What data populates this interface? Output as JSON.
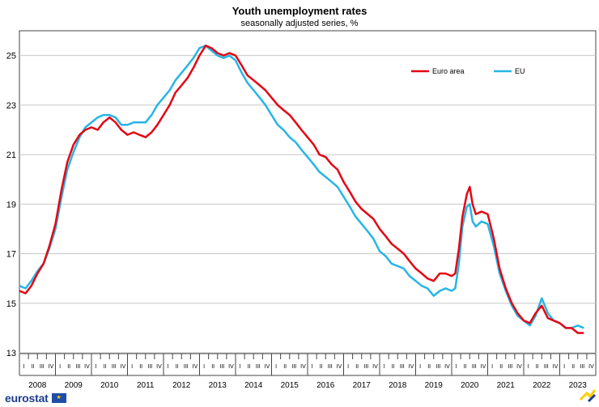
{
  "chart_data": {
    "type": "line",
    "title": "Youth unemployment rates",
    "subtitle": "seasonally adjusted series, %",
    "xlabel": "",
    "ylabel": "",
    "ylim": [
      13,
      26
    ],
    "y_ticks": [
      13,
      15,
      17,
      19,
      21,
      23,
      25
    ],
    "grid": true,
    "legend_position": "top-right",
    "quarter_labels": [
      "I",
      "II",
      "III",
      "IV"
    ],
    "years": [
      "2008",
      "2009",
      "2010",
      "2011",
      "2012",
      "2013",
      "2014",
      "2015",
      "2016",
      "2017",
      "2018",
      "2019",
      "2020",
      "2021",
      "2022",
      "2023"
    ],
    "x_start": 2008.0,
    "x_end": 2023.75,
    "series": [
      {
        "name": "Euro area",
        "color": "#e30613",
        "points": [
          [
            2008.0,
            15.5
          ],
          [
            2008.17,
            15.4
          ],
          [
            2008.33,
            15.7
          ],
          [
            2008.5,
            16.2
          ],
          [
            2008.67,
            16.6
          ],
          [
            2008.83,
            17.3
          ],
          [
            2009.0,
            18.2
          ],
          [
            2009.17,
            19.6
          ],
          [
            2009.33,
            20.7
          ],
          [
            2009.5,
            21.4
          ],
          [
            2009.67,
            21.8
          ],
          [
            2009.83,
            22.0
          ],
          [
            2010.0,
            22.1
          ],
          [
            2010.17,
            22.0
          ],
          [
            2010.33,
            22.3
          ],
          [
            2010.5,
            22.5
          ],
          [
            2010.67,
            22.3
          ],
          [
            2010.83,
            22.0
          ],
          [
            2011.0,
            21.8
          ],
          [
            2011.17,
            21.9
          ],
          [
            2011.33,
            21.8
          ],
          [
            2011.5,
            21.7
          ],
          [
            2011.67,
            21.9
          ],
          [
            2011.83,
            22.2
          ],
          [
            2012.0,
            22.6
          ],
          [
            2012.17,
            23.0
          ],
          [
            2012.33,
            23.5
          ],
          [
            2012.5,
            23.8
          ],
          [
            2012.67,
            24.1
          ],
          [
            2012.83,
            24.5
          ],
          [
            2013.0,
            25.0
          ],
          [
            2013.17,
            25.4
          ],
          [
            2013.33,
            25.3
          ],
          [
            2013.5,
            25.1
          ],
          [
            2013.67,
            25.0
          ],
          [
            2013.83,
            25.1
          ],
          [
            2014.0,
            25.0
          ],
          [
            2014.17,
            24.6
          ],
          [
            2014.33,
            24.2
          ],
          [
            2014.5,
            24.0
          ],
          [
            2014.67,
            23.8
          ],
          [
            2014.83,
            23.6
          ],
          [
            2015.0,
            23.3
          ],
          [
            2015.17,
            23.0
          ],
          [
            2015.33,
            22.8
          ],
          [
            2015.5,
            22.6
          ],
          [
            2015.67,
            22.3
          ],
          [
            2015.83,
            22.0
          ],
          [
            2016.0,
            21.7
          ],
          [
            2016.17,
            21.4
          ],
          [
            2016.33,
            21.0
          ],
          [
            2016.5,
            20.9
          ],
          [
            2016.67,
            20.6
          ],
          [
            2016.83,
            20.4
          ],
          [
            2017.0,
            19.9
          ],
          [
            2017.17,
            19.5
          ],
          [
            2017.33,
            19.1
          ],
          [
            2017.5,
            18.8
          ],
          [
            2017.67,
            18.6
          ],
          [
            2017.83,
            18.4
          ],
          [
            2018.0,
            18.0
          ],
          [
            2018.17,
            17.7
          ],
          [
            2018.33,
            17.4
          ],
          [
            2018.5,
            17.2
          ],
          [
            2018.67,
            17.0
          ],
          [
            2018.83,
            16.7
          ],
          [
            2019.0,
            16.4
          ],
          [
            2019.17,
            16.2
          ],
          [
            2019.33,
            16.0
          ],
          [
            2019.5,
            15.9
          ],
          [
            2019.67,
            16.2
          ],
          [
            2019.83,
            16.2
          ],
          [
            2020.0,
            16.1
          ],
          [
            2020.1,
            16.2
          ],
          [
            2020.2,
            17.2
          ],
          [
            2020.3,
            18.5
          ],
          [
            2020.42,
            19.4
          ],
          [
            2020.5,
            19.7
          ],
          [
            2020.58,
            19.0
          ],
          [
            2020.67,
            18.6
          ],
          [
            2020.83,
            18.7
          ],
          [
            2021.0,
            18.6
          ],
          [
            2021.17,
            17.6
          ],
          [
            2021.33,
            16.4
          ],
          [
            2021.5,
            15.6
          ],
          [
            2021.67,
            15.0
          ],
          [
            2021.83,
            14.6
          ],
          [
            2022.0,
            14.3
          ],
          [
            2022.17,
            14.2
          ],
          [
            2022.33,
            14.6
          ],
          [
            2022.5,
            14.9
          ],
          [
            2022.67,
            14.4
          ],
          [
            2022.83,
            14.3
          ],
          [
            2023.0,
            14.2
          ],
          [
            2023.17,
            14.0
          ],
          [
            2023.33,
            14.0
          ],
          [
            2023.5,
            13.8
          ],
          [
            2023.67,
            13.8
          ]
        ]
      },
      {
        "name": "EU",
        "color": "#26b5e6",
        "points": [
          [
            2008.0,
            15.7
          ],
          [
            2008.17,
            15.6
          ],
          [
            2008.33,
            15.9
          ],
          [
            2008.5,
            16.3
          ],
          [
            2008.67,
            16.6
          ],
          [
            2008.83,
            17.2
          ],
          [
            2009.0,
            18.0
          ],
          [
            2009.17,
            19.3
          ],
          [
            2009.33,
            20.4
          ],
          [
            2009.5,
            21.1
          ],
          [
            2009.67,
            21.7
          ],
          [
            2009.83,
            22.1
          ],
          [
            2010.0,
            22.3
          ],
          [
            2010.17,
            22.5
          ],
          [
            2010.33,
            22.6
          ],
          [
            2010.5,
            22.6
          ],
          [
            2010.67,
            22.5
          ],
          [
            2010.83,
            22.2
          ],
          [
            2011.0,
            22.2
          ],
          [
            2011.17,
            22.3
          ],
          [
            2011.33,
            22.3
          ],
          [
            2011.5,
            22.3
          ],
          [
            2011.67,
            22.6
          ],
          [
            2011.83,
            23.0
          ],
          [
            2012.0,
            23.3
          ],
          [
            2012.17,
            23.6
          ],
          [
            2012.33,
            24.0
          ],
          [
            2012.5,
            24.3
          ],
          [
            2012.67,
            24.6
          ],
          [
            2012.83,
            24.9
          ],
          [
            2013.0,
            25.3
          ],
          [
            2013.17,
            25.4
          ],
          [
            2013.33,
            25.2
          ],
          [
            2013.5,
            25.0
          ],
          [
            2013.67,
            24.9
          ],
          [
            2013.83,
            25.0
          ],
          [
            2014.0,
            24.8
          ],
          [
            2014.17,
            24.3
          ],
          [
            2014.33,
            23.9
          ],
          [
            2014.5,
            23.6
          ],
          [
            2014.67,
            23.3
          ],
          [
            2014.83,
            23.0
          ],
          [
            2015.0,
            22.6
          ],
          [
            2015.17,
            22.2
          ],
          [
            2015.33,
            22.0
          ],
          [
            2015.5,
            21.7
          ],
          [
            2015.67,
            21.5
          ],
          [
            2015.83,
            21.2
          ],
          [
            2016.0,
            20.9
          ],
          [
            2016.17,
            20.6
          ],
          [
            2016.33,
            20.3
          ],
          [
            2016.5,
            20.1
          ],
          [
            2016.67,
            19.9
          ],
          [
            2016.83,
            19.7
          ],
          [
            2017.0,
            19.3
          ],
          [
            2017.17,
            18.9
          ],
          [
            2017.33,
            18.5
          ],
          [
            2017.5,
            18.2
          ],
          [
            2017.67,
            17.9
          ],
          [
            2017.83,
            17.6
          ],
          [
            2018.0,
            17.1
          ],
          [
            2018.17,
            16.9
          ],
          [
            2018.33,
            16.6
          ],
          [
            2018.5,
            16.5
          ],
          [
            2018.67,
            16.4
          ],
          [
            2018.83,
            16.1
          ],
          [
            2019.0,
            15.9
          ],
          [
            2019.17,
            15.7
          ],
          [
            2019.33,
            15.6
          ],
          [
            2019.5,
            15.3
          ],
          [
            2019.67,
            15.5
          ],
          [
            2019.83,
            15.6
          ],
          [
            2020.0,
            15.5
          ],
          [
            2020.1,
            15.6
          ],
          [
            2020.2,
            16.6
          ],
          [
            2020.3,
            18.1
          ],
          [
            2020.42,
            18.9
          ],
          [
            2020.5,
            19.0
          ],
          [
            2020.58,
            18.3
          ],
          [
            2020.67,
            18.1
          ],
          [
            2020.83,
            18.3
          ],
          [
            2021.0,
            18.2
          ],
          [
            2021.17,
            17.3
          ],
          [
            2021.33,
            16.2
          ],
          [
            2021.5,
            15.5
          ],
          [
            2021.67,
            14.9
          ],
          [
            2021.83,
            14.5
          ],
          [
            2022.0,
            14.3
          ],
          [
            2022.17,
            14.1
          ],
          [
            2022.33,
            14.5
          ],
          [
            2022.5,
            15.2
          ],
          [
            2022.67,
            14.6
          ],
          [
            2022.83,
            14.3
          ],
          [
            2023.0,
            14.2
          ],
          [
            2023.17,
            14.0
          ],
          [
            2023.33,
            14.0
          ],
          [
            2023.5,
            14.1
          ],
          [
            2023.67,
            14.0
          ]
        ]
      }
    ]
  },
  "branding": {
    "logo_text": "eurostat",
    "flag_symbol": "★",
    "brand_color": "#1e3d8f"
  }
}
